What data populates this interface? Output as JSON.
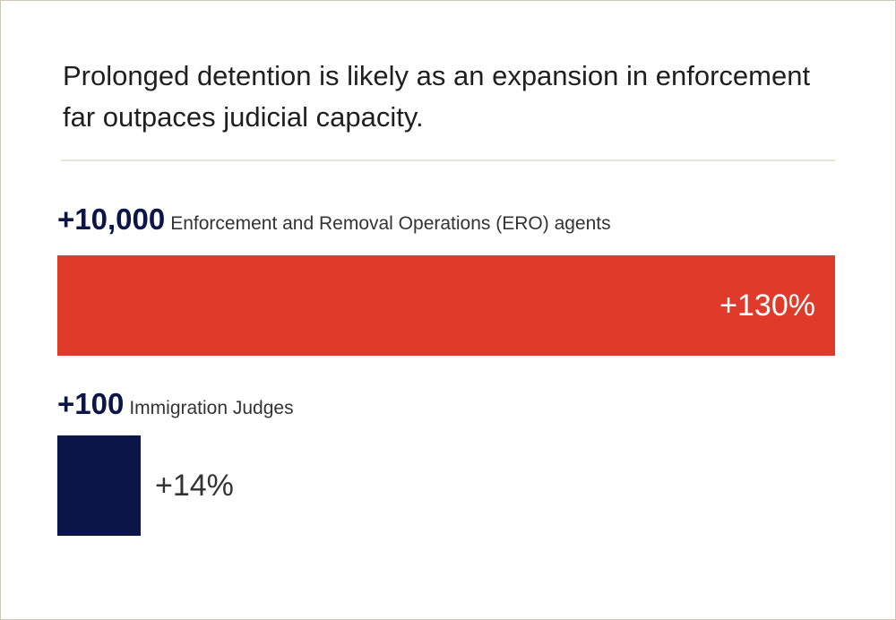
{
  "title": "Prolonged detention is likely as an expansion in enforcement far outpaces judicial capacity.",
  "chart_data": {
    "type": "bar",
    "orientation": "horizontal",
    "title": "Prolonged detention is likely as an expansion in enforcement far outpaces judicial capacity.",
    "categories": [
      "Enforcement and Removal Operations (ERO) agents",
      "Immigration Judges"
    ],
    "increases": [
      "+10,000",
      "+100"
    ],
    "values": [
      130,
      14
    ],
    "value_labels": [
      "+130%",
      "+14%"
    ],
    "unit": "percent increase",
    "colors": [
      "#e03a2b",
      "#0b1547"
    ],
    "xlim": [
      0,
      130
    ]
  }
}
